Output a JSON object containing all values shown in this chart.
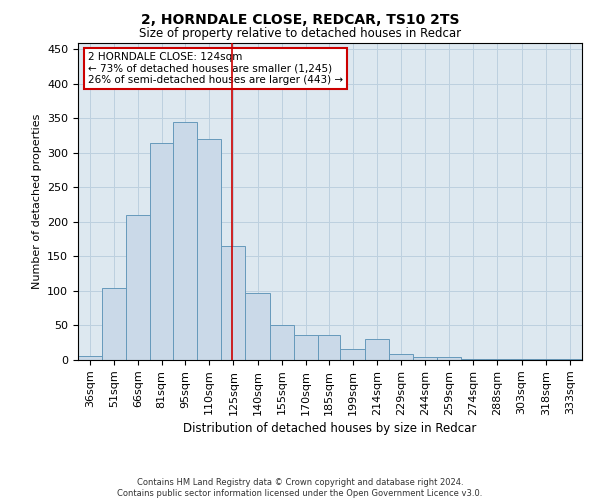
{
  "title": "2, HORNDALE CLOSE, REDCAR, TS10 2TS",
  "subtitle": "Size of property relative to detached houses in Redcar",
  "xlabel": "Distribution of detached houses by size in Redcar",
  "ylabel": "Number of detached properties",
  "footer_line1": "Contains HM Land Registry data © Crown copyright and database right 2024.",
  "footer_line2": "Contains public sector information licensed under the Open Government Licence v3.0.",
  "annotation_title": "2 HORNDALE CLOSE: 124sqm",
  "annotation_line1": "← 73% of detached houses are smaller (1,245)",
  "annotation_line2": "26% of semi-detached houses are larger (443) →",
  "vline_x": 124,
  "categories": [
    "36sqm",
    "51sqm",
    "66sqm",
    "81sqm",
    "95sqm",
    "110sqm",
    "125sqm",
    "140sqm",
    "155sqm",
    "170sqm",
    "185sqm",
    "199sqm",
    "214sqm",
    "229sqm",
    "244sqm",
    "259sqm",
    "274sqm",
    "288sqm",
    "303sqm",
    "318sqm",
    "333sqm"
  ],
  "bin_edges": [
    28.5,
    43.5,
    58.5,
    73.5,
    87.5,
    102.5,
    117.5,
    132.5,
    147.5,
    162.5,
    177.5,
    191.5,
    206.5,
    221.5,
    236.5,
    251.5,
    266.5,
    281.5,
    296.5,
    311.5,
    326.5,
    341.5
  ],
  "bar_heights": [
    6,
    105,
    210,
    315,
    345,
    320,
    165,
    97,
    50,
    36,
    36,
    16,
    30,
    8,
    5,
    5,
    2,
    1,
    1,
    1,
    1
  ],
  "bar_color": "#cad9e8",
  "bar_edge_color": "#6699bb",
  "vline_color": "#cc0000",
  "annotation_box_color": "#cc0000",
  "background_color": "#ffffff",
  "axes_bg_color": "#dde8f0",
  "grid_color": "#bdd0df",
  "ylim": [
    0,
    460
  ],
  "yticks": [
    0,
    50,
    100,
    150,
    200,
    250,
    300,
    350,
    400,
    450
  ],
  "title_fontsize": 10,
  "subtitle_fontsize": 8.5,
  "ylabel_fontsize": 8,
  "xlabel_fontsize": 8.5,
  "tick_fontsize": 8,
  "footer_fontsize": 6,
  "annotation_fontsize": 7.5
}
